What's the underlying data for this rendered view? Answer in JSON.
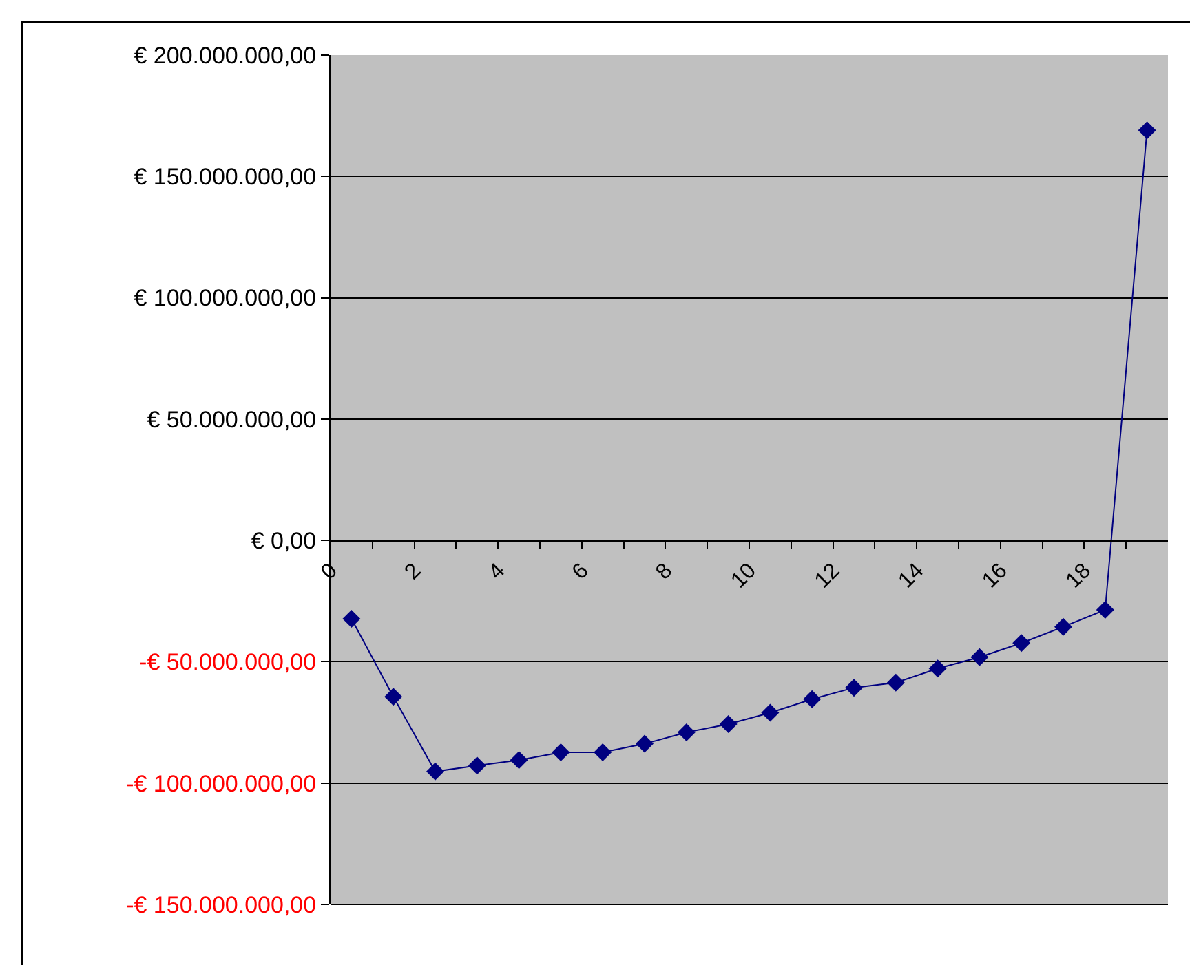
{
  "chart_data": {
    "type": "line",
    "x": [
      0.5,
      1.5,
      2.5,
      3.5,
      4.5,
      5.5,
      6.5,
      7.5,
      8.5,
      9.5,
      10.5,
      11.5,
      12.5,
      13.5,
      14.5,
      15.5,
      16.5,
      17.5,
      18.5,
      19.5
    ],
    "series": [
      {
        "color": "#000080",
        "values": [
          -32300000,
          -64400000,
          -95200000,
          -92800000,
          -90500000,
          -87300000,
          -87300000,
          -83800000,
          -79100000,
          -75700000,
          -71000000,
          -65400000,
          -60700000,
          -58600000,
          -52800000,
          -48100000,
          -42300000,
          -35600000,
          -28600000,
          169000000
        ]
      }
    ],
    "xlim": [
      0,
      20
    ],
    "xticks": [
      0,
      {
        "value": 1,
        "label": null
      },
      2,
      {
        "value": 3,
        "label": null
      },
      4,
      {
        "value": 5,
        "label": null
      },
      6,
      {
        "value": 7,
        "label": null
      },
      8,
      {
        "value": 9,
        "label": null
      },
      10,
      {
        "value": 11,
        "label": null
      },
      12,
      {
        "value": 13,
        "label": null
      },
      14,
      {
        "value": 15,
        "label": null
      },
      16,
      {
        "value": 17,
        "label": null
      },
      18,
      {
        "value": 19,
        "label": null
      }
    ],
    "ylim": [
      -150000000,
      200000000
    ],
    "yticks": [
      {
        "value": -150000000,
        "label": "-€ 150.000.000,00"
      },
      {
        "value": -100000000,
        "label": "-€ 100.000.000,00"
      },
      {
        "value": -50000000,
        "label": "-€ 50.000.000,00"
      },
      {
        "value": 0,
        "label": "€ 0,00"
      },
      {
        "value": 50000000,
        "label": "€ 50.000.000,00"
      },
      {
        "value": 100000000,
        "label": "€ 100.000.000,00"
      },
      {
        "value": 150000000,
        "label": "€ 150.000.000,00"
      },
      {
        "value": 200000000,
        "label": "€ 200.000.000,00"
      }
    ],
    "grid": "y",
    "marker": "diamond",
    "line_style": "solid",
    "legend": false
  }
}
